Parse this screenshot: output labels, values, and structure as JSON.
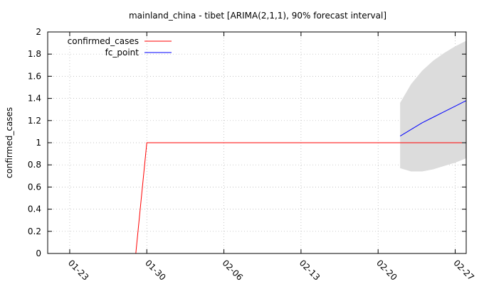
{
  "chart_data": {
    "type": "line",
    "title": "mainland_china - tibet [ARIMA(2,1,1), 90% forecast interval]",
    "xlabel": "",
    "ylabel": "confirmed_cases",
    "x_tick_labels": [
      "01-23",
      "01-30",
      "02-06",
      "02-13",
      "02-20",
      "02-27"
    ],
    "y_tick_labels": [
      "0",
      "0.2",
      "0.4",
      "0.6",
      "0.8",
      "1",
      "1.2",
      "1.4",
      "1.6",
      "1.8",
      "2"
    ],
    "ylim": [
      0,
      2
    ],
    "xlim": [
      "2020-01-21",
      "2020-02-28"
    ],
    "grid": true,
    "legend_position": "top-left",
    "series": [
      {
        "name": "confirmed_cases",
        "color": "#ff0000",
        "points": [
          [
            "2020-01-28",
            0
          ],
          [
            "2020-01-29",
            0
          ],
          [
            "2020-01-30",
            1
          ],
          [
            "2020-01-31",
            1
          ],
          [
            "2020-02-05",
            1
          ],
          [
            "2020-02-10",
            1
          ],
          [
            "2020-02-15",
            1
          ],
          [
            "2020-02-20",
            1
          ],
          [
            "2020-02-23",
            1
          ],
          [
            "2020-02-25",
            1
          ],
          [
            "2020-02-28",
            1
          ]
        ]
      },
      {
        "name": "fc_point",
        "color": "#0000ff",
        "points": [
          [
            "2020-02-22",
            1.06
          ],
          [
            "2020-02-23",
            1.12
          ],
          [
            "2020-02-24",
            1.18
          ],
          [
            "2020-02-25",
            1.23
          ],
          [
            "2020-02-26",
            1.28
          ],
          [
            "2020-02-27",
            1.33
          ],
          [
            "2020-02-28",
            1.38
          ]
        ]
      }
    ],
    "forecast_interval": {
      "color": "#dcdcdc",
      "points": [
        [
          "2020-02-22",
          0.77,
          1.36
        ],
        [
          "2020-02-23",
          0.74,
          1.53
        ],
        [
          "2020-02-24",
          0.74,
          1.65
        ],
        [
          "2020-02-25",
          0.76,
          1.74
        ],
        [
          "2020-02-26",
          0.79,
          1.81
        ],
        [
          "2020-02-27",
          0.82,
          1.87
        ],
        [
          "2020-02-28",
          0.86,
          1.92
        ]
      ]
    }
  }
}
